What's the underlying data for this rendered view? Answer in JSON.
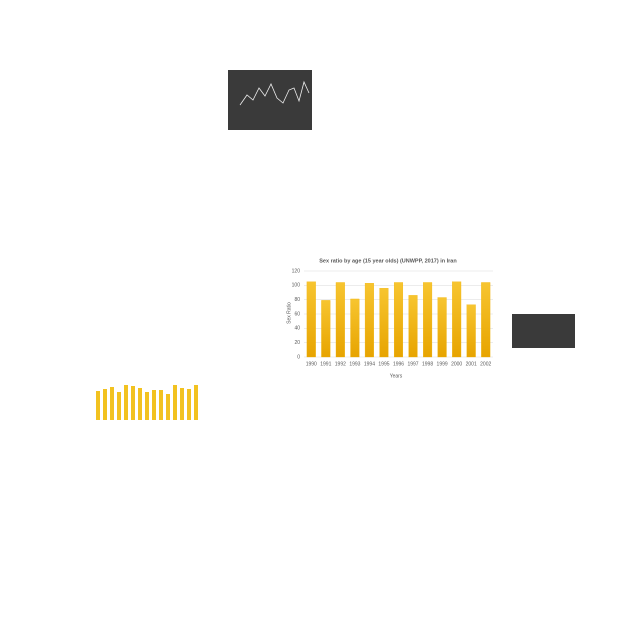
{
  "chart_data": {
    "type": "bar",
    "title": "Sex ratio by age (15 year olds) (UNWPP, 2017) in Iran",
    "x_label": "Years",
    "y_label": "Sex Ratio",
    "categories": [
      "1990",
      "1991",
      "1992",
      "1993",
      "1994",
      "1995",
      "1996",
      "1997",
      "1998",
      "1999",
      "2000",
      "2001",
      "2002"
    ],
    "values": [
      105,
      79,
      104,
      81,
      103,
      96,
      104,
      86,
      104,
      83,
      105,
      73,
      104
    ],
    "color": "#f0b000",
    "ylim": [
      0,
      120
    ],
    "yticks": [
      0,
      20,
      40,
      60,
      80,
      100,
      120
    ],
    "grid": true
  }
}
